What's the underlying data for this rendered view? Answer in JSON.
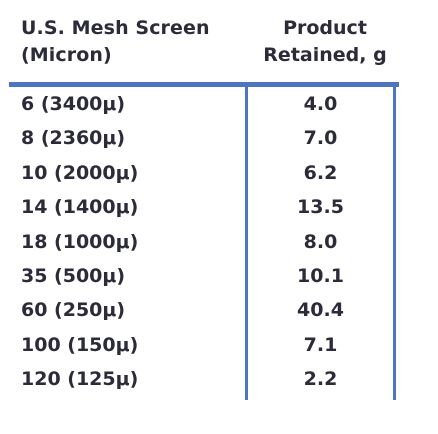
{
  "table": {
    "header": {
      "col1_line1": "U.S. Mesh Screen",
      "col1_line2": "(Micron)",
      "col2_line1": "Product",
      "col2_line2": "Retained, g"
    },
    "rows": [
      {
        "screen": "6 (3400μ)",
        "retained": "4.0"
      },
      {
        "screen": "8 (2360μ)",
        "retained": "7.0"
      },
      {
        "screen": "10 (2000μ)",
        "retained": "6.2"
      },
      {
        "screen": "14 (1400μ)",
        "retained": "13.5"
      },
      {
        "screen": "18 (1000μ)",
        "retained": "8.0"
      },
      {
        "screen": "35 (500μ)",
        "retained": "10.1"
      },
      {
        "screen": "60 (250μ)",
        "retained": "40.4"
      },
      {
        "screen": "100 (150μ)",
        "retained": "7.1"
      },
      {
        "screen": "120 (125μ)",
        "retained": "2.2"
      }
    ],
    "colors": {
      "rule": "#4d76bd",
      "text": "#2b2b3a"
    }
  }
}
